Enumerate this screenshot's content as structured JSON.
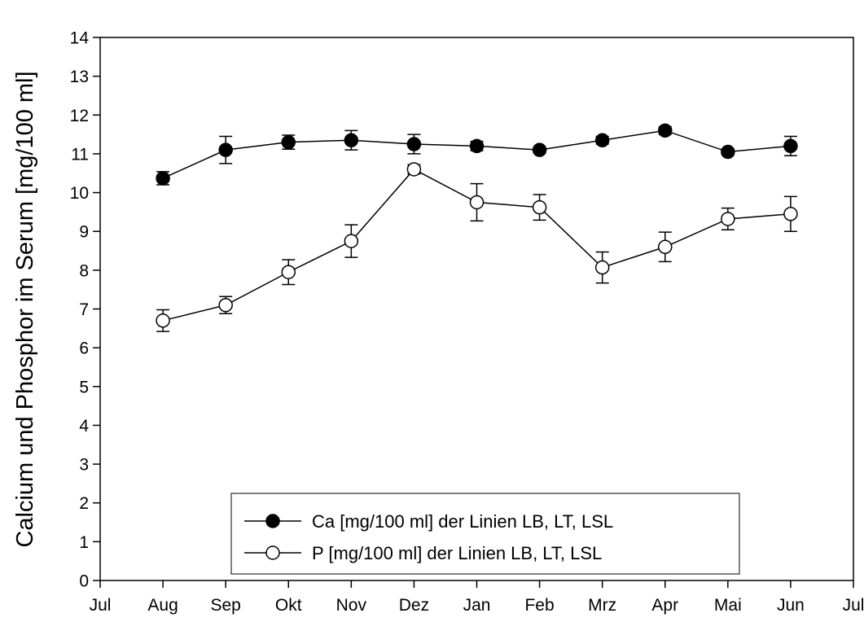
{
  "chart_data": {
    "type": "line",
    "title": "",
    "xlabel": "",
    "ylabel": "Calcium und Phosphor im Serum [mg/100 ml]",
    "x_ticks": [
      "Jul",
      "Aug",
      "Sep",
      "Okt",
      "Nov",
      "Dez",
      "Jan",
      "Feb",
      "Mrz",
      "Apr",
      "Mai",
      "Jun",
      "Jul"
    ],
    "categories": [
      "Aug",
      "Sep",
      "Okt",
      "Nov",
      "Dez",
      "Jan",
      "Feb",
      "Mrz",
      "Apr",
      "Mai",
      "Jun"
    ],
    "ylim": [
      0,
      14
    ],
    "y_ticks": [
      "0",
      "1",
      "2",
      "3",
      "4",
      "5",
      "6",
      "7",
      "8",
      "9",
      "10",
      "11",
      "12",
      "13",
      "14"
    ],
    "grid": false,
    "legend_position": "bottom-center",
    "series": [
      {
        "name": "Ca [mg/100 ml] der Linien LB, LT, LSL",
        "marker": "filled-circle",
        "color": "#000000",
        "values": [
          10.37,
          11.1,
          11.3,
          11.35,
          11.25,
          11.2,
          11.1,
          11.35,
          11.6,
          11.05,
          11.2
        ],
        "errors": [
          0.17,
          0.35,
          0.18,
          0.25,
          0.25,
          0.12,
          0.07,
          0.1,
          0.1,
          0.08,
          0.25
        ]
      },
      {
        "name": "P [mg/100 ml] der Linien LB, LT, LSL",
        "marker": "open-circle",
        "color": "#000000",
        "values": [
          6.7,
          7.1,
          7.95,
          8.75,
          10.6,
          9.75,
          9.62,
          8.07,
          8.6,
          9.32,
          9.45
        ],
        "errors": [
          0.28,
          0.22,
          0.32,
          0.42,
          0.12,
          0.48,
          0.33,
          0.4,
          0.38,
          0.28,
          0.45
        ]
      }
    ]
  }
}
